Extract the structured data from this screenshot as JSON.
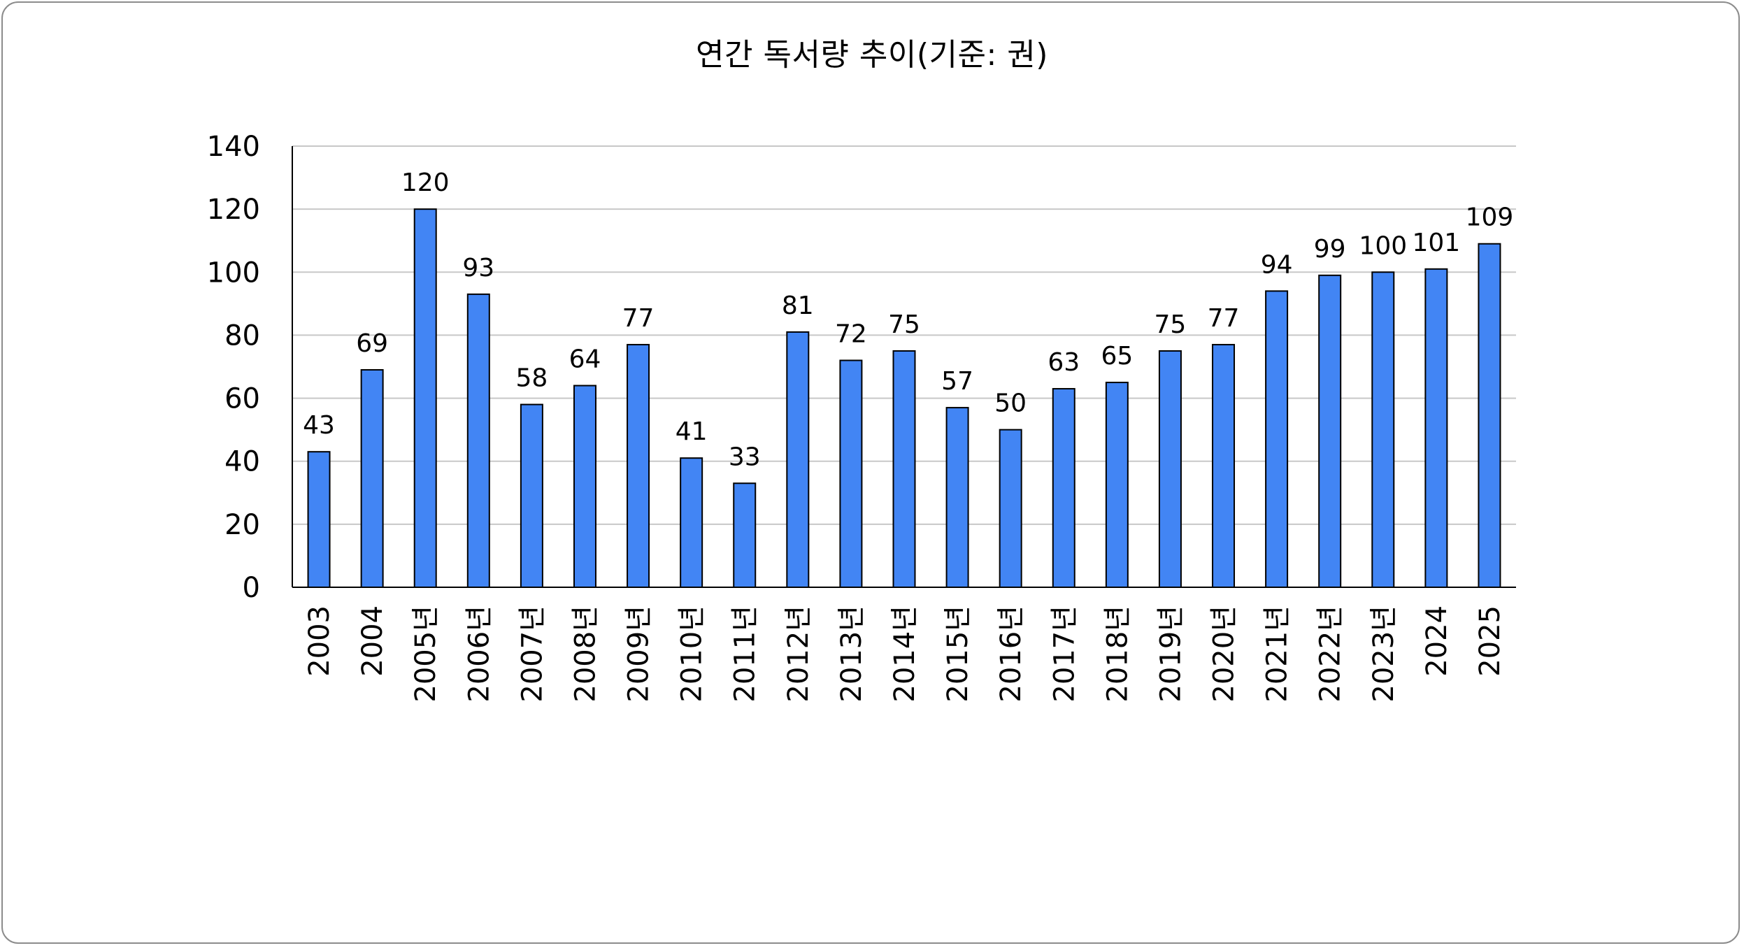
{
  "chart_data": {
    "type": "bar",
    "title": "연간 독서량 추이(기준: 권)",
    "xlabel": "",
    "ylabel": "",
    "categories": [
      "2003",
      "2004",
      "2005년",
      "2006년",
      "2007년",
      "2008년",
      "2009년",
      "2010년",
      "2011년",
      "2012년",
      "2013년",
      "2014년",
      "2015년",
      "2016년",
      "2017년",
      "2018년",
      "2019년",
      "2020년",
      "2021년",
      "2022년",
      "2023년",
      "2024",
      "2025"
    ],
    "values": [
      43,
      69,
      120,
      93,
      58,
      64,
      77,
      41,
      33,
      81,
      72,
      75,
      57,
      50,
      63,
      65,
      75,
      77,
      94,
      99,
      100,
      101,
      109
    ],
    "ylim": [
      0,
      140
    ],
    "yticks": [
      0,
      20,
      40,
      60,
      80,
      100,
      120,
      140
    ],
    "grid": true,
    "legend": "none",
    "bar_color": "#4285f4",
    "bar_edge_color": "#000000"
  }
}
